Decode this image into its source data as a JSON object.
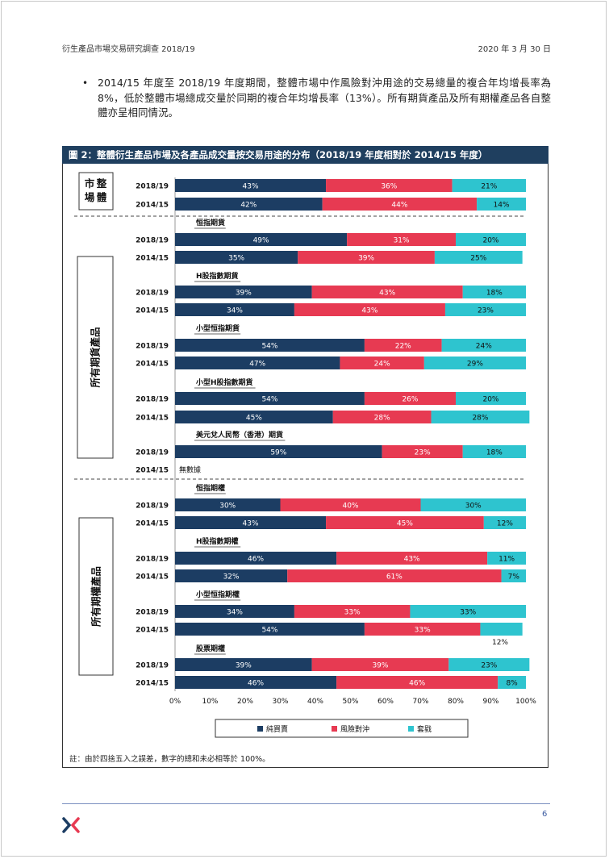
{
  "header": {
    "left": "衍生產品市場交易研究調查 2018/19",
    "right": "2020 年 3 月 30 日"
  },
  "intro": {
    "bullet": "•",
    "text": "2014/15 年度至 2018/19 年度期間，整體市場中作風險對沖用途的交易總量的複合年均增長率為 8%，低於整體市場總成交量於同期的複合年均增長率（13%）。所有期貨產品及所有期權產品各自整體亦呈相同情況。"
  },
  "figure": {
    "title": "圖 2：整體衍生產品市場及各產品成交量按交易用途的分布（2018/19 年度相對於 2014/15 年度）"
  },
  "chart_data": {
    "type": "bar",
    "orientation": "horizontal",
    "stacked": true,
    "title": "圖 2：整體衍生產品市場及各產品成交量按交易用途的分布（2018/19 年度相對於 2014/15 年度）",
    "xlim": [
      0,
      100
    ],
    "xticks": [
      "0%",
      "10%",
      "20%",
      "30%",
      "40%",
      "50%",
      "60%",
      "70%",
      "80%",
      "90%",
      "100%"
    ],
    "series_names": [
      "純買賣",
      "風險對沖",
      "套戥"
    ],
    "colors": [
      "#1c3d63",
      "#e73a52",
      "#2ec4cf"
    ],
    "legend_position": "bottom",
    "groups": [
      {
        "section": "整體市場",
        "product": "",
        "bars": [
          {
            "year": "2018/19",
            "values": [
              43,
              36,
              21
            ]
          },
          {
            "year": "2014/15",
            "values": [
              42,
              44,
              14
            ]
          }
        ]
      },
      {
        "section": "所有期貨產品",
        "product": "恒指期貨",
        "bars": [
          {
            "year": "2018/19",
            "values": [
              49,
              31,
              20
            ]
          },
          {
            "year": "2014/15",
            "values": [
              35,
              39,
              25
            ]
          }
        ]
      },
      {
        "section": "所有期貨產品",
        "product": "H股指數期貨",
        "bars": [
          {
            "year": "2018/19",
            "values": [
              39,
              43,
              18
            ]
          },
          {
            "year": "2014/15",
            "values": [
              34,
              43,
              23
            ]
          }
        ]
      },
      {
        "section": "所有期貨產品",
        "product": "小型恒指期貨",
        "bars": [
          {
            "year": "2018/19",
            "values": [
              54,
              22,
              24
            ]
          },
          {
            "year": "2014/15",
            "values": [
              47,
              24,
              29
            ]
          }
        ]
      },
      {
        "section": "所有期貨產品",
        "product": "小型H股指數期貨",
        "bars": [
          {
            "year": "2018/19",
            "values": [
              54,
              26,
              20
            ]
          },
          {
            "year": "2014/15",
            "values": [
              45,
              28,
              28
            ]
          }
        ]
      },
      {
        "section": "所有期貨產品",
        "product": "美元兌人民幣（香港）期貨",
        "bars": [
          {
            "year": "2018/19",
            "values": [
              59,
              23,
              18
            ]
          },
          {
            "year": "2014/15",
            "values": null,
            "no_data": "無數據"
          }
        ]
      },
      {
        "section": "所有期權產品",
        "product": "恒指期權",
        "bars": [
          {
            "year": "2018/19",
            "values": [
              30,
              40,
              30
            ]
          },
          {
            "year": "2014/15",
            "values": [
              43,
              45,
              12
            ]
          }
        ]
      },
      {
        "section": "所有期權產品",
        "product": "H股指數期權",
        "bars": [
          {
            "year": "2018/19",
            "values": [
              46,
              43,
              11
            ]
          },
          {
            "year": "2014/15",
            "values": [
              32,
              61,
              7
            ]
          }
        ]
      },
      {
        "section": "所有期權產品",
        "product": "小型恒指期權",
        "bars": [
          {
            "year": "2018/19",
            "values": [
              34,
              33,
              33
            ]
          },
          {
            "year": "2014/15",
            "values": [
              54,
              33,
              12
            ]
          }
        ]
      },
      {
        "section": "所有期權產品",
        "product": "股票期權",
        "bars": [
          {
            "year": "2018/19",
            "values": [
              39,
              39,
              23
            ]
          },
          {
            "year": "2014/15",
            "values": [
              46,
              46,
              8
            ]
          }
        ]
      }
    ]
  },
  "note": "註：由於四捨五入之誤差，數字的總和未必相等於 100%。",
  "footer": {
    "page": "6"
  }
}
